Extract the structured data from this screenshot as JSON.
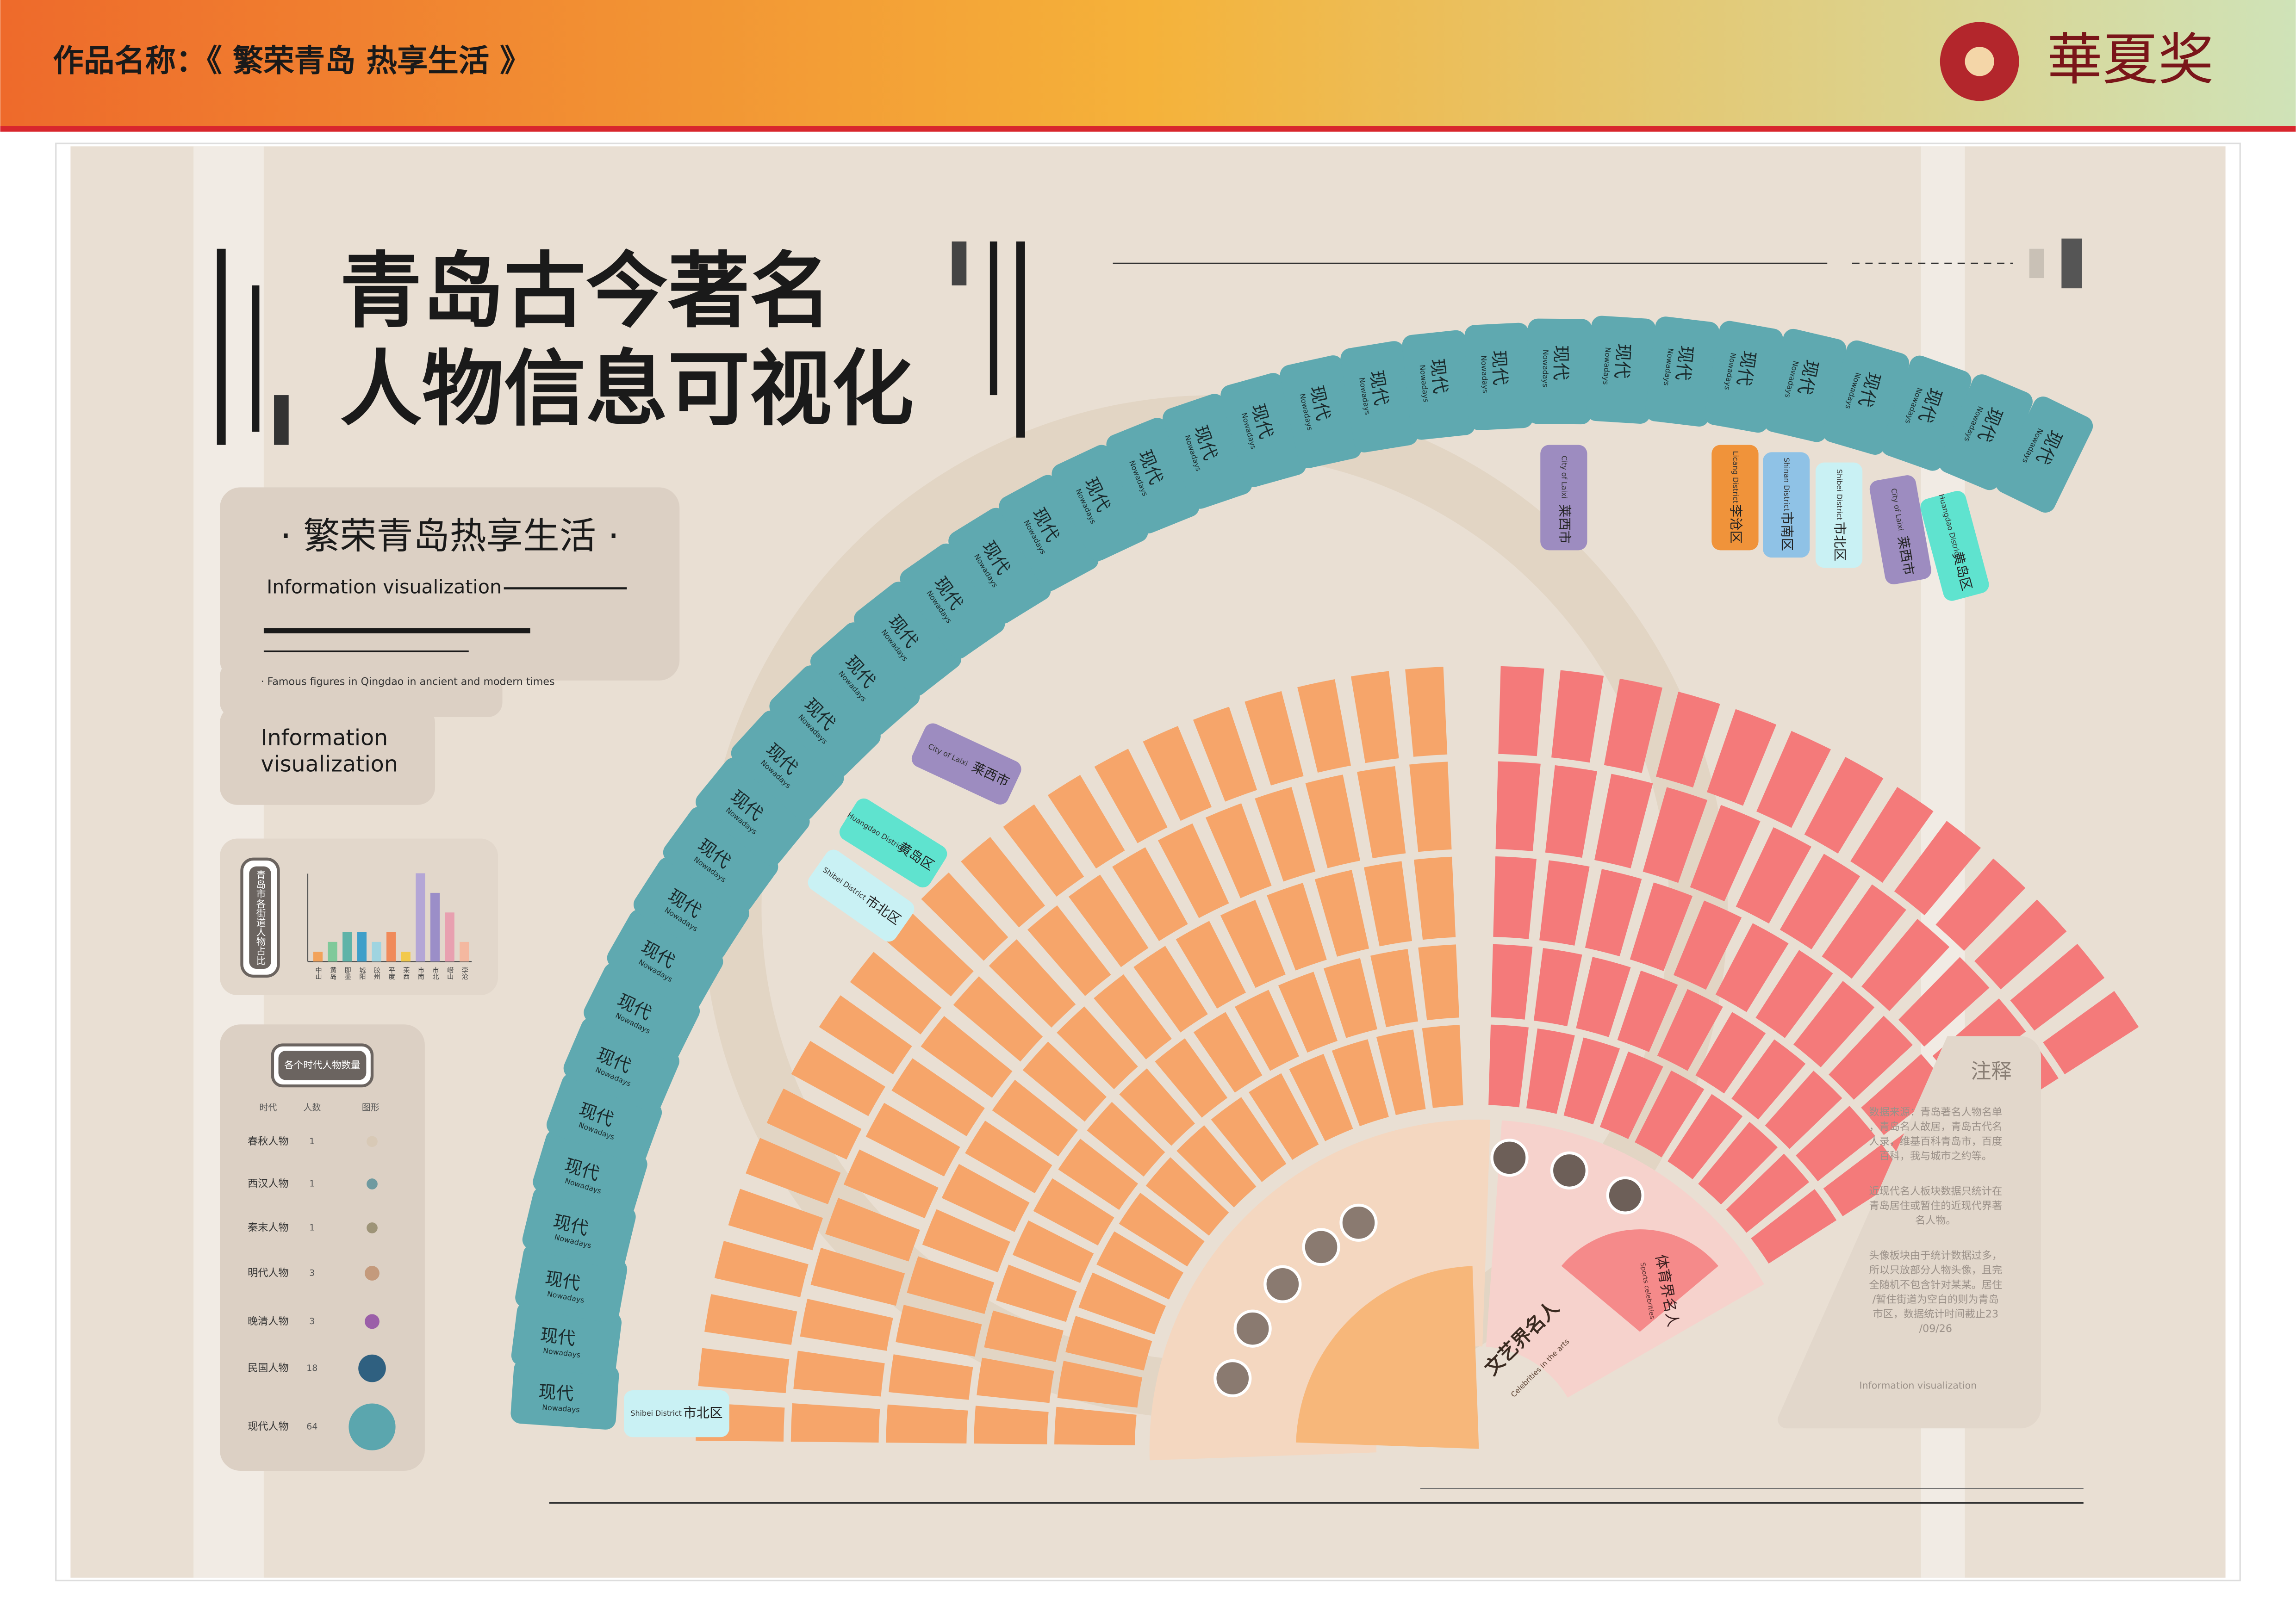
{
  "header": {
    "title": "作品名称：《 繁荣青岛 热享生活 》",
    "logo": "華夏奖"
  },
  "main_title": {
    "line1": "青岛古今著名",
    "line2": "人物信息可视化"
  },
  "intro": {
    "heading": "· 繁荣青岛热享生活 ·",
    "subtitle": "Information visualization",
    "note": "· Famous figures in Qingdao in ancient and modern times",
    "caption_line1": "Information",
    "caption_line2": "visualization"
  },
  "chart_data": {
    "type": "bar",
    "title": "青岛市各街道人物占比",
    "categories": [
      "中山",
      "黄岛",
      "即墨",
      "城阳",
      "胶州",
      "平度",
      "莱西",
      "市南",
      "市北",
      "崂山",
      "李沧"
    ],
    "values": [
      1,
      2,
      3,
      3,
      2,
      3,
      1,
      9,
      7,
      5,
      2
    ],
    "colors": [
      "#f2a25a",
      "#7fc99a",
      "#5fb3a8",
      "#3f9fc9",
      "#9fd4e0",
      "#f08a5a",
      "#f2c94c",
      "#b4a6d6",
      "#9b8ec8",
      "#e8a0b0",
      "#f4b8a0"
    ],
    "ylim": [
      0,
      10
    ]
  },
  "legend_table": {
    "title": "各个时代人物数量",
    "headers": [
      "时代",
      "人数",
      "图形"
    ],
    "rows": [
      {
        "era": "春秋人物",
        "count": 1,
        "color": "#d8c9b6"
      },
      {
        "era": "西汉人物",
        "count": 1,
        "color": "#6f9aa0"
      },
      {
        "era": "秦末人物",
        "count": 1,
        "color": "#9e9478"
      },
      {
        "era": "明代人物",
        "count": 3,
        "color": "#c49a7c"
      },
      {
        "era": "晚清人物",
        "count": 3,
        "color": "#9b5fa8"
      },
      {
        "era": "民国人物",
        "count": 18,
        "color": "#2f6080"
      },
      {
        "era": "现代人物",
        "count": 64,
        "color": "#5ba6ae"
      }
    ]
  },
  "outer_ring": {
    "tabs": [
      {
        "label": "现代",
        "sublabel": "Nowadays"
      },
      {
        "label": "现代",
        "sublabel": "Nowadays"
      },
      {
        "label": "现代",
        "sublabel": "Nowadays"
      },
      {
        "label": "现代",
        "sublabel": "Nowadays"
      },
      {
        "label": "现代",
        "sublabel": "Nowadays"
      },
      {
        "label": "现代",
        "sublabel": "Nowadays"
      },
      {
        "label": "现代",
        "sublabel": "Nowadays"
      },
      {
        "label": "现代",
        "sublabel": "Nowadays"
      },
      {
        "label": "现代",
        "sublabel": "Nowadays"
      },
      {
        "label": "现代",
        "sublabel": "Nowadays"
      },
      {
        "label": "现代",
        "sublabel": "Nowadays"
      },
      {
        "label": "现代",
        "sublabel": "Nowadays"
      },
      {
        "label": "现代",
        "sublabel": "Nowadays"
      },
      {
        "label": "现代",
        "sublabel": "Nowadays"
      },
      {
        "label": "现代",
        "sublabel": "Nowadays"
      },
      {
        "label": "现代",
        "sublabel": "Nowadays"
      },
      {
        "label": "现代",
        "sublabel": "Nowadays"
      },
      {
        "label": "现代",
        "sublabel": "Nowadays"
      },
      {
        "label": "现代",
        "sublabel": "Nowadays"
      },
      {
        "label": "现代",
        "sublabel": "Nowadays"
      },
      {
        "label": "现代",
        "sublabel": "Nowadays"
      },
      {
        "label": "现代",
        "sublabel": "Nowadays"
      },
      {
        "label": "现代",
        "sublabel": "Nowadays"
      },
      {
        "label": "现代",
        "sublabel": "Nowadays"
      },
      {
        "label": "现代",
        "sublabel": "Nowadays"
      },
      {
        "label": "现代",
        "sublabel": "Nowadays"
      },
      {
        "label": "现代",
        "sublabel": "Nowadays"
      },
      {
        "label": "现代",
        "sublabel": "Nowadays"
      },
      {
        "label": "现代",
        "sublabel": "Nowadays"
      },
      {
        "label": "现代",
        "sublabel": "Nowadays"
      },
      {
        "label": "现代",
        "sublabel": "Nowadays"
      },
      {
        "label": "现代",
        "sublabel": "Nowadays"
      },
      {
        "label": "现代",
        "sublabel": "Nowadays"
      },
      {
        "label": "现代",
        "sublabel": "Nowadays"
      },
      {
        "label": "现代",
        "sublabel": "Nowadays"
      },
      {
        "label": "现代",
        "sublabel": "Nowadays"
      }
    ]
  },
  "districts": [
    {
      "name_en": "Shibei District",
      "name_cn": "市北区",
      "color": "#c9f1f4"
    },
    {
      "name_en": "Shibei District",
      "name_cn": "市北区",
      "color": "#c9f1f4"
    },
    {
      "name_en": "Huangdao District",
      "name_cn": "黄岛区",
      "color": "#5fe3cf"
    },
    {
      "name_en": "City of Laixi",
      "name_cn": "莱西市",
      "color": "#9d8cc0"
    },
    {
      "name_en": "City of Laixi",
      "name_cn": "莱西市",
      "color": "#9d8cc0"
    },
    {
      "name_en": "Licang District",
      "name_cn": "李沧区",
      "color": "#f0933a"
    },
    {
      "name_en": "Shinan District",
      "name_cn": "市南区",
      "color": "#8fc2e6"
    },
    {
      "name_en": "Shibei District",
      "name_cn": "市北区",
      "color": "#c9f1f4"
    },
    {
      "name_en": "City of Laixi",
      "name_cn": "莱西市",
      "color": "#9d8cc0"
    },
    {
      "name_en": "Huangdao District",
      "name_cn": "黄岛区",
      "color": "#5fe3cf"
    }
  ],
  "fan": {
    "arts_label": "文艺界名人",
    "arts_sublabel": "Celebrities in the arts",
    "sports_label": "体育界名人",
    "sports_sublabel": "Sports celebrities"
  },
  "notes": {
    "title": "注释",
    "paragraphs": [
      "数据来源：青岛著名人物名单，青岛名人故居，青岛古代名人录，维基百科青岛市，百度百科，我与城市之约等。",
      "近现代名人板块数据只统计在青岛居住或暂住的近现代界著名人物。",
      "头像板块由于统计数据过多，所以只放部分人物头像，且完全随机不包含针对某某。居住/暂住街道为空白的则为青岛市区，数据统计时间截止23/09/26"
    ],
    "footer": "Information visualization"
  }
}
